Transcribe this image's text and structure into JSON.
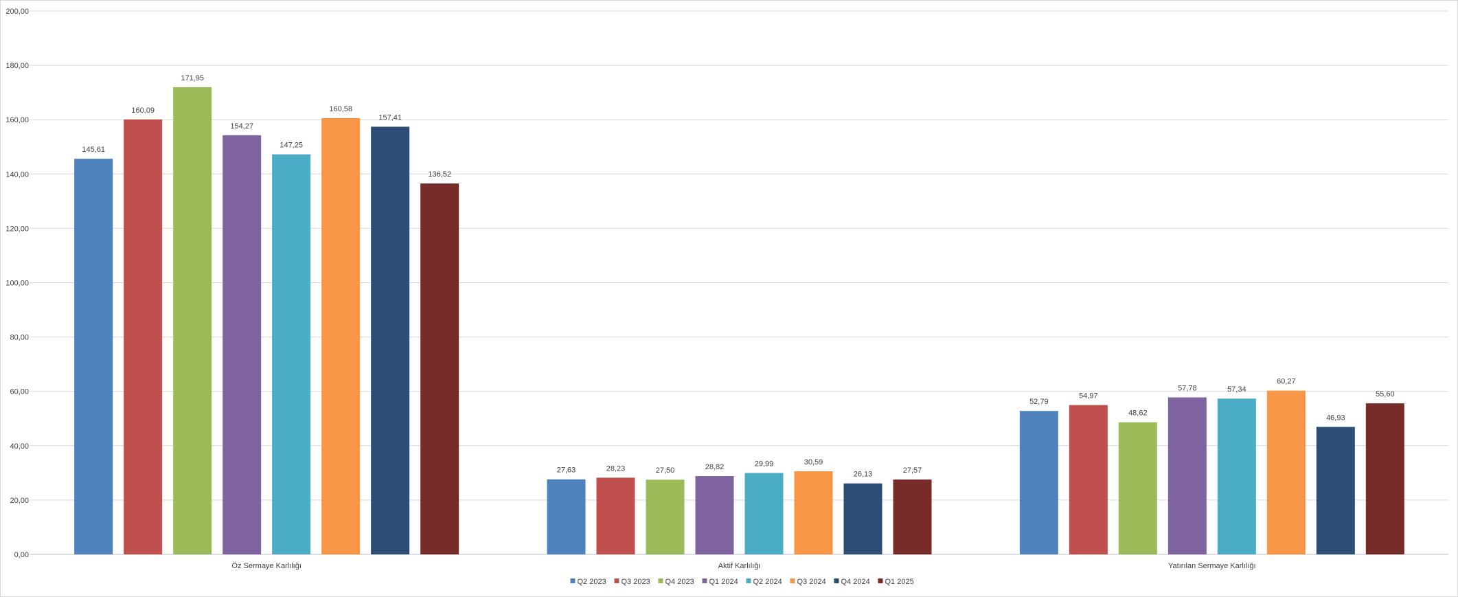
{
  "chart_data": {
    "type": "bar",
    "title": "",
    "xlabel": "",
    "ylabel": "",
    "ylim": [
      0,
      200
    ],
    "y_ticks": [
      "0,00",
      "20,00",
      "40,00",
      "60,00",
      "80,00",
      "100,00",
      "120,00",
      "140,00",
      "160,00",
      "180,00",
      "200,00"
    ],
    "grid": true,
    "legend_position": "bottom",
    "categories": [
      "Öz Sermaye Karlılığı",
      "Aktif Karlılığı",
      "Yatırılan Sermaye Karlılığı"
    ],
    "series": [
      {
        "name": "Q2 2023",
        "color": "#4f81bd",
        "values": [
          145.61,
          27.63,
          52.79
        ],
        "labels": [
          "145,61",
          "27,63",
          "52,79"
        ]
      },
      {
        "name": "Q3 2023",
        "color": "#c0504d",
        "values": [
          160.09,
          28.23,
          54.97
        ],
        "labels": [
          "160,09",
          "28,23",
          "54,97"
        ]
      },
      {
        "name": "Q4 2023",
        "color": "#9bbb59",
        "values": [
          171.95,
          27.5,
          48.62
        ],
        "labels": [
          "171,95",
          "27,50",
          "48,62"
        ]
      },
      {
        "name": "Q1 2024",
        "color": "#8064a2",
        "values": [
          154.27,
          28.82,
          57.78
        ],
        "labels": [
          "154,27",
          "28,82",
          "57,78"
        ]
      },
      {
        "name": "Q2 2024",
        "color": "#4bacc6",
        "values": [
          147.25,
          29.99,
          57.34
        ],
        "labels": [
          "147,25",
          "29,99",
          "57,34"
        ]
      },
      {
        "name": "Q3 2024",
        "color": "#f79646",
        "values": [
          160.58,
          30.59,
          60.27
        ],
        "labels": [
          "160,58",
          "30,59",
          "60,27"
        ]
      },
      {
        "name": "Q4 2024",
        "color": "#2c4d75",
        "values": [
          157.41,
          26.13,
          46.93
        ],
        "labels": [
          "157,41",
          "26,13",
          "46,93"
        ]
      },
      {
        "name": "Q1 2025",
        "color": "#772c2a",
        "values": [
          136.52,
          27.57,
          55.6
        ],
        "labels": [
          "136,52",
          "27,57",
          "55,60"
        ]
      }
    ]
  }
}
